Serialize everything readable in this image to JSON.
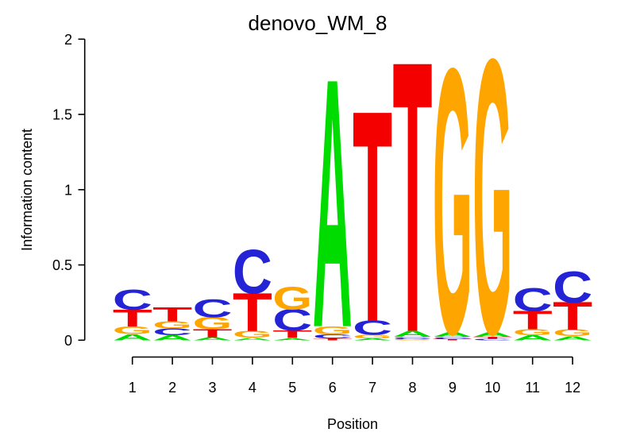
{
  "chart_data": {
    "type": "sequence-logo",
    "title": "denovo_WM_8",
    "xlabel": "Position",
    "ylabel": "Information content",
    "ylim": [
      0,
      2
    ],
    "grid": "off",
    "legend": "none",
    "yticks": [
      {
        "value": 0,
        "label": "0"
      },
      {
        "value": 0.5,
        "label": "0.5"
      },
      {
        "value": 1,
        "label": "1"
      },
      {
        "value": 1.5,
        "label": "1.5"
      },
      {
        "value": 2,
        "label": "2"
      }
    ],
    "positions": [
      "1",
      "2",
      "3",
      "4",
      "5",
      "6",
      "7",
      "8",
      "9",
      "10",
      "11",
      "12"
    ],
    "letter_colors": {
      "A": "#00DC00",
      "C": "#2424D6",
      "G": "#FFA500",
      "T": "#F50000"
    },
    "axis_color": "#000000",
    "text_color": "#000000",
    "background": "#FFFFFF",
    "stacks": [
      {
        "position": "1",
        "letters": [
          {
            "letter": "A",
            "height": 0.04
          },
          {
            "letter": "G",
            "height": 0.05
          },
          {
            "letter": "T",
            "height": 0.112
          },
          {
            "letter": "C",
            "height": 0.13
          }
        ]
      },
      {
        "position": "2",
        "letters": [
          {
            "letter": "A",
            "height": 0.032
          },
          {
            "letter": "C",
            "height": 0.045
          },
          {
            "letter": "G",
            "height": 0.048
          },
          {
            "letter": "T",
            "height": 0.089
          }
        ]
      },
      {
        "position": "3",
        "letters": [
          {
            "letter": "A",
            "height": 0.02
          },
          {
            "letter": "T",
            "height": 0.052
          },
          {
            "letter": "G",
            "height": 0.08
          },
          {
            "letter": "C",
            "height": 0.118
          }
        ]
      },
      {
        "position": "4",
        "letters": [
          {
            "letter": "A",
            "height": 0.018
          },
          {
            "letter": "G",
            "height": 0.045
          },
          {
            "letter": "T",
            "height": 0.25
          },
          {
            "letter": "C",
            "height": 0.287
          }
        ]
      },
      {
        "position": "5",
        "letters": [
          {
            "letter": "A",
            "height": 0.014
          },
          {
            "letter": "T",
            "height": 0.05
          },
          {
            "letter": "C",
            "height": 0.14
          },
          {
            "letter": "G",
            "height": 0.148
          }
        ]
      },
      {
        "position": "6",
        "letters": [
          {
            "letter": "T",
            "height": 0.012
          },
          {
            "letter": "C",
            "height": 0.026
          },
          {
            "letter": "G",
            "height": 0.055
          },
          {
            "letter": "A",
            "height": 1.627
          }
        ]
      },
      {
        "position": "7",
        "letters": [
          {
            "letter": "A",
            "height": 0.012
          },
          {
            "letter": "G",
            "height": 0.023
          },
          {
            "letter": "C",
            "height": 0.095
          },
          {
            "letter": "T",
            "height": 1.38
          }
        ]
      },
      {
        "position": "8",
        "letters": [
          {
            "letter": "G",
            "height": 0.008
          },
          {
            "letter": "C",
            "height": 0.014
          },
          {
            "letter": "A",
            "height": 0.04
          },
          {
            "letter": "T",
            "height": 1.772
          }
        ]
      },
      {
        "position": "9",
        "letters": [
          {
            "letter": "T",
            "height": 0.008
          },
          {
            "letter": "C",
            "height": 0.014
          },
          {
            "letter": "A",
            "height": 0.03
          },
          {
            "letter": "G",
            "height": 1.733
          }
        ]
      },
      {
        "position": "10",
        "letters": [
          {
            "letter": "C",
            "height": 0.01
          },
          {
            "letter": "T",
            "height": 0.012
          },
          {
            "letter": "A",
            "height": 0.03
          },
          {
            "letter": "G",
            "height": 1.795
          }
        ]
      },
      {
        "position": "11",
        "letters": [
          {
            "letter": "A",
            "height": 0.033
          },
          {
            "letter": "G",
            "height": 0.04
          },
          {
            "letter": "T",
            "height": 0.122
          },
          {
            "letter": "C",
            "height": 0.15
          }
        ]
      },
      {
        "position": "12",
        "letters": [
          {
            "letter": "A",
            "height": 0.028
          },
          {
            "letter": "G",
            "height": 0.042
          },
          {
            "letter": "T",
            "height": 0.18
          },
          {
            "letter": "C",
            "height": 0.205
          }
        ]
      }
    ]
  }
}
